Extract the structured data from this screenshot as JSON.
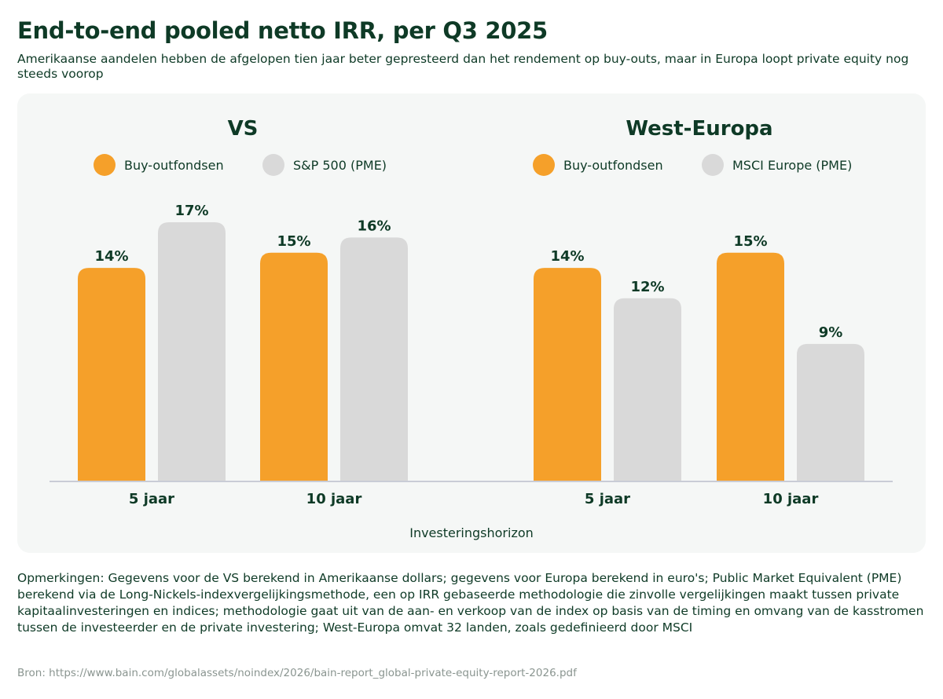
{
  "title": "End-to-end pooled netto IRR, per Q3 2025",
  "subtitle": "Amerikaanse aandelen hebben de afgelopen tien jaar  beter gepresteerd dan het rendement op buy-outs, maar in Europa loopt private equity nog steeds voorop",
  "notes": "Opmerkingen: Gegevens voor de VS berekend in Amerikaanse dollars; gegevens voor Europa berekend in euro's; Public Market Equivalent (PME) berekend via de Long-Nickels-indexvergelijkingsmethode, een op IRR gebaseerde methodologie die zinvolle vergelijkingen maakt tussen private kapitaalinvesteringen en indices; methodologie gaat uit van de aan- en verkoop van de index op basis van de timing en omvang van de kasstromen tussen de investeerder en de private investering; West-Europa omvat 32 landen, zoals gedefinieerd door MSCI",
  "source": "Bron: https://www.bain.com/globalassets/noindex/2026/bain-report_global-private-equity-report-2026.pdf",
  "colors": {
    "buyout": "#f5a02a",
    "pme": "#d9d9d9",
    "text": "#0e3a26",
    "panel": "#f5f7f6"
  },
  "chart_data": [
    {
      "type": "bar",
      "title": "VS",
      "xlabel": "Investeringshorizon",
      "categories": [
        "5 jaar",
        "10 jaar"
      ],
      "series": [
        {
          "name": "Buy-outfondsen",
          "values": [
            14,
            15
          ],
          "labels": [
            "14%",
            "15%"
          ]
        },
        {
          "name": "S&P 500 (PME)",
          "values": [
            17,
            16
          ],
          "labels": [
            "17%",
            "16%"
          ]
        }
      ],
      "grid": false,
      "legend": "top"
    },
    {
      "type": "bar",
      "title": "West-Europa",
      "xlabel": "Investeringshorizon",
      "categories": [
        "5 jaar",
        "10 jaar"
      ],
      "series": [
        {
          "name": "Buy-outfondsen",
          "values": [
            14,
            15
          ],
          "labels": [
            "14%",
            "15%"
          ]
        },
        {
          "name": "MSCI Europe (PME)",
          "values": [
            12,
            9
          ],
          "labels": [
            "12%",
            "9%"
          ]
        }
      ],
      "grid": false,
      "legend": "top"
    }
  ]
}
